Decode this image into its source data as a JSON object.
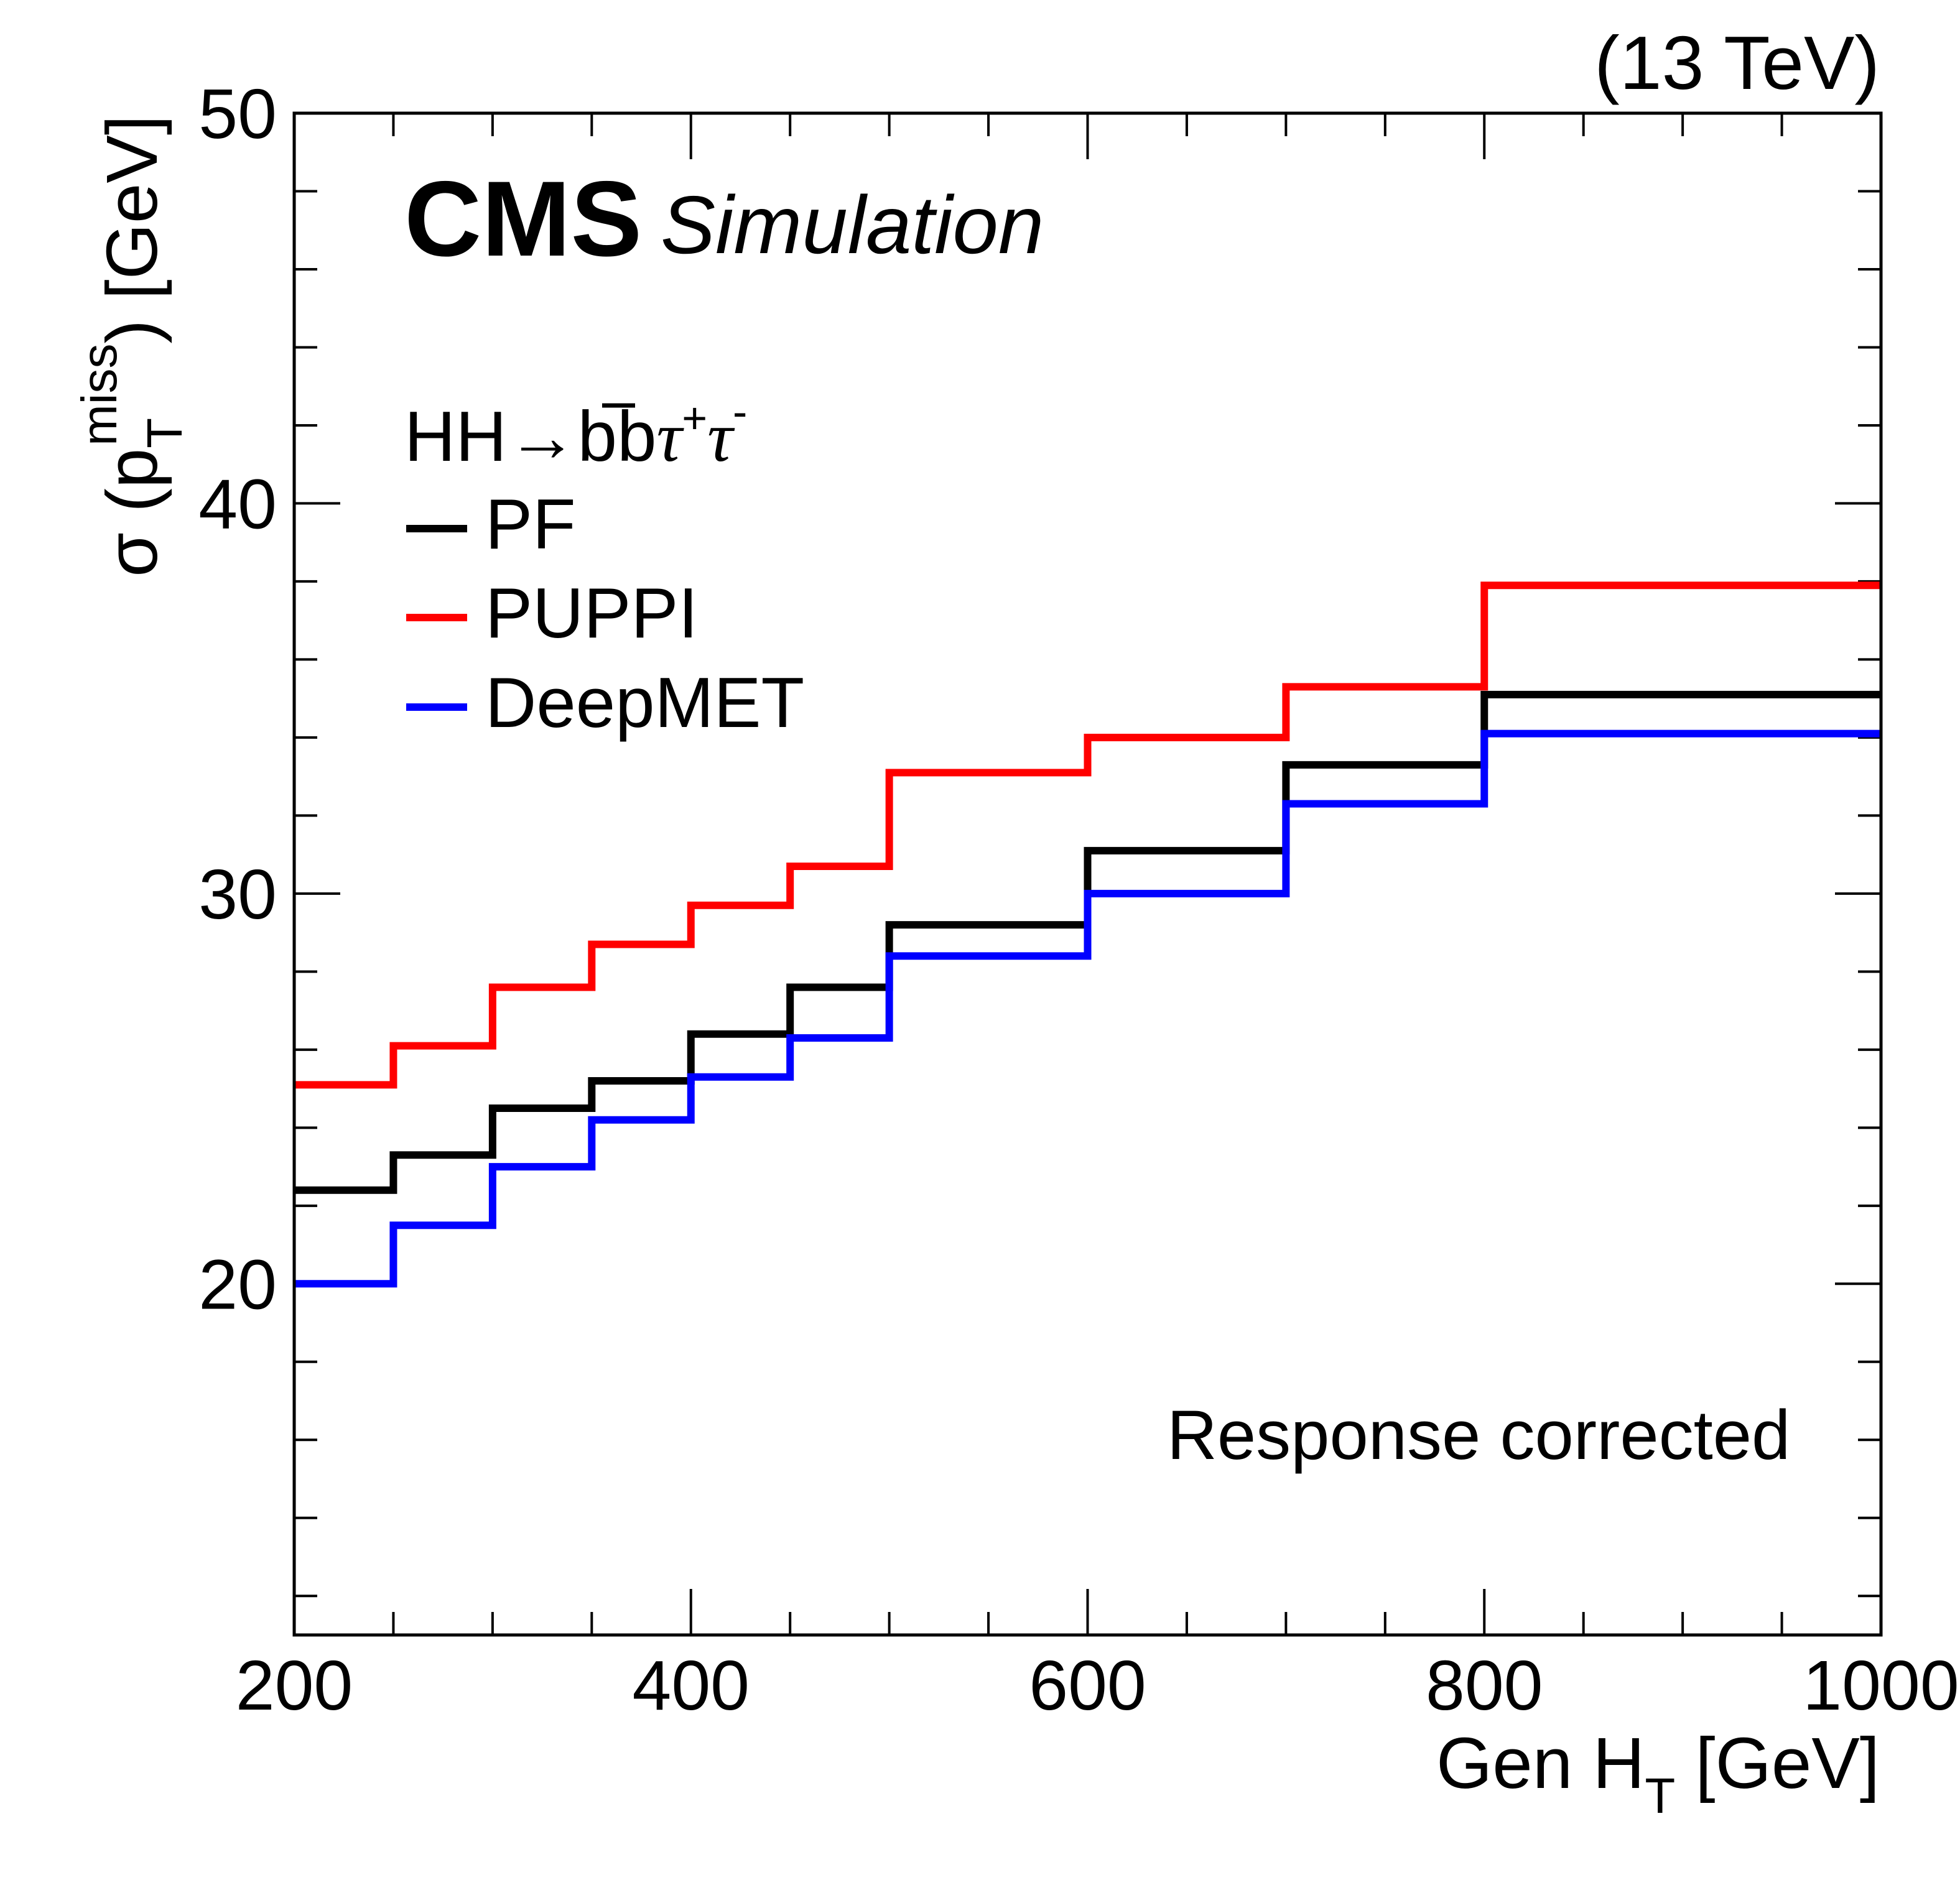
{
  "chart_data": {
    "type": "histogram-step",
    "title": "",
    "experiment_label": "CMS",
    "experiment_sublabel": "Simulation",
    "energy_label": "(13 TeV)",
    "annotation": "Response corrected",
    "process_label": {
      "base": "HH→b",
      "bbar": "b",
      "tau1": "τ",
      "tau1_sup": "+",
      "tau2": "τ",
      "tau2_sup": "-"
    },
    "xlabel": {
      "main": "Gen H",
      "sub": "T",
      "unit": " [GeV]"
    },
    "ylabel": {
      "prefix": "σ (p",
      "sub": "T",
      "sup": "miss",
      "suffix": ") [GeV]"
    },
    "xlim": [
      200,
      1000
    ],
    "ylim": [
      11,
      50
    ],
    "x_major_ticks": [
      200,
      400,
      600,
      800,
      1000
    ],
    "x_minor_step": 50,
    "y_major_ticks": [
      20,
      30,
      40,
      50
    ],
    "y_minor_step": 2,
    "x_tick_labels": [
      "200",
      "400",
      "600",
      "800",
      "1000"
    ],
    "y_tick_labels": [
      "20",
      "30",
      "40",
      "50"
    ],
    "grid": false,
    "legend_position": "top-left",
    "bin_edges": [
      200,
      250,
      300,
      350,
      400,
      450,
      500,
      600,
      700,
      800,
      1000
    ],
    "series": [
      {
        "name": "PF",
        "color": "#000000",
        "values": [
          22.4,
          23.3,
          24.5,
          25.2,
          26.4,
          27.6,
          29.2,
          31.1,
          33.3,
          35.1
        ]
      },
      {
        "name": "PUPPI",
        "color": "#ff0000",
        "values": [
          25.1,
          26.1,
          27.6,
          28.7,
          29.7,
          30.7,
          33.1,
          34.0,
          35.3,
          37.9
        ]
      },
      {
        "name": "DeepMET",
        "color": "#0000ff",
        "values": [
          20.0,
          21.5,
          23.0,
          24.2,
          25.3,
          26.3,
          28.4,
          30.0,
          32.3,
          34.1
        ]
      }
    ]
  }
}
